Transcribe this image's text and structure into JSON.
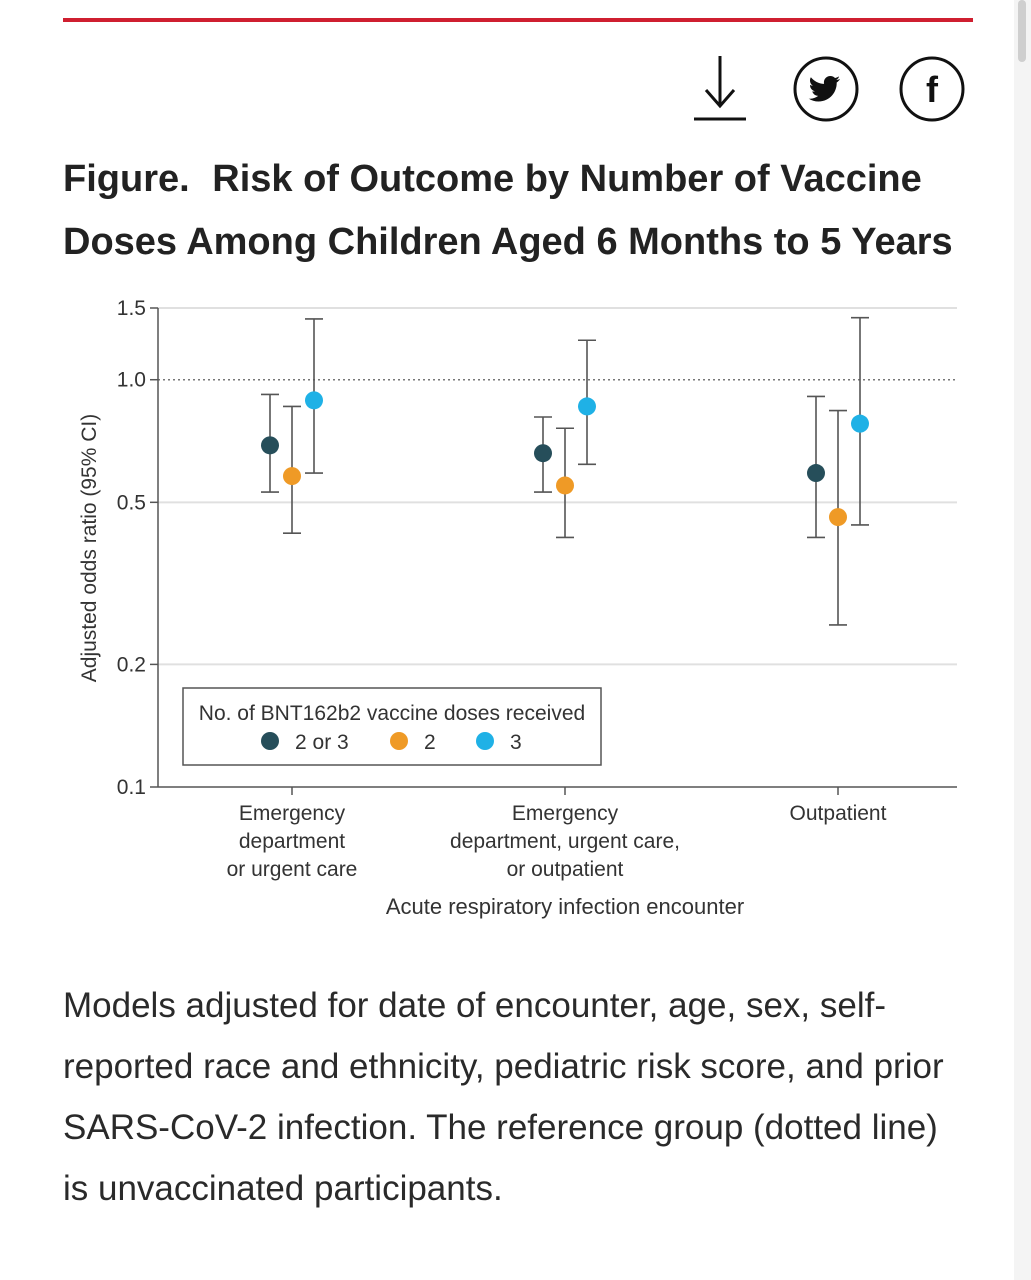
{
  "figure": {
    "label": "Figure.",
    "title": "Risk of Outcome by Number of Vaccine Doses Among Children Aged 6 Months to 5 Years",
    "caption": "Models adjusted for date of encounter, age, sex, self-reported race and ethnicity, pediatric risk score, and prior SARS-CoV-2 infection. The reference group (dotted line) is unvaccinated participants."
  },
  "toolbar": {
    "download_icon": "download-icon",
    "twitter_icon": "twitter-icon",
    "facebook_icon": "facebook-icon",
    "facebook_glyph": "f"
  },
  "colors": {
    "accent_rule": "#cf1f30",
    "series_2or3": "#264e5a",
    "series_2": "#ef9a26",
    "series_3": "#1fb1e6"
  },
  "chart_data": {
    "type": "scatter",
    "subtype": "dot-and-whisker",
    "ylabel": "Adjusted odds ratio (95% CI)",
    "xlabel": "Acute respiratory infection encounter",
    "y_scale": "log",
    "ylim": [
      0.1,
      1.5
    ],
    "yticks": [
      {
        "value": 0.1,
        "label": "0.1"
      },
      {
        "value": 0.2,
        "label": "0.2"
      },
      {
        "value": 0.5,
        "label": "0.5"
      },
      {
        "value": 1.0,
        "label": "1.0"
      },
      {
        "value": 1.5,
        "label": "1.5"
      }
    ],
    "reference_line": 1.0,
    "grid": true,
    "categories": [
      [
        "Emergency",
        "department",
        "or urgent care"
      ],
      [
        "Emergency",
        "department, urgent care,",
        "or outpatient"
      ],
      [
        "Outpatient"
      ]
    ],
    "legend": {
      "title": "No. of BNT162b2 vaccine doses received",
      "position": "bottom-left"
    },
    "series": [
      {
        "name": "2 or 3",
        "color": "#264e5a",
        "values": [
          0.69,
          0.66,
          0.59
        ],
        "ci_low": [
          0.53,
          0.53,
          0.41
        ],
        "ci_high": [
          0.92,
          0.81,
          0.91
        ]
      },
      {
        "name": "2",
        "color": "#ef9a26",
        "values": [
          0.58,
          0.55,
          0.46
        ],
        "ci_low": [
          0.42,
          0.41,
          0.25
        ],
        "ci_high": [
          0.86,
          0.76,
          0.84
        ]
      },
      {
        "name": "3",
        "color": "#1fb1e6",
        "values": [
          0.89,
          0.86,
          0.78
        ],
        "ci_low": [
          0.59,
          0.62,
          0.44
        ],
        "ci_high": [
          1.41,
          1.25,
          1.42
        ]
      }
    ]
  }
}
